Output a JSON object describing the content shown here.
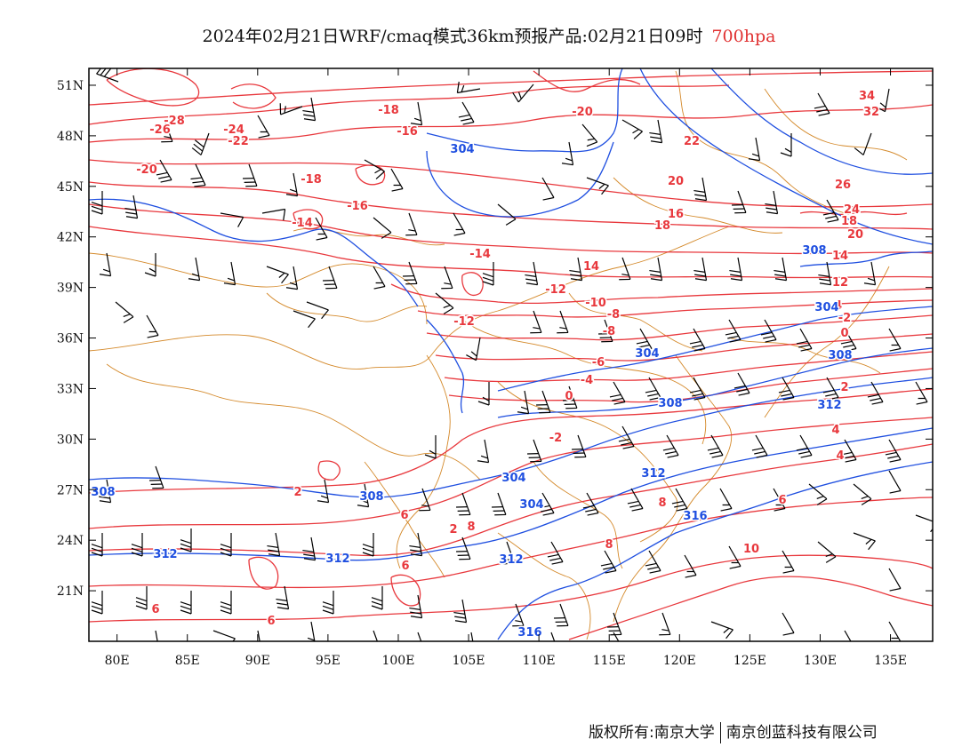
{
  "title": {
    "main": "2024年02月21日WRF/cmaq模式36km预报产品:02月21日09时",
    "level": "700hpa"
  },
  "map": {
    "lat_labels": [
      "51N",
      "48N",
      "45N",
      "42N",
      "39N",
      "36N",
      "33N",
      "30N",
      "27N",
      "24N",
      "21N"
    ],
    "lon_labels": [
      "80E",
      "85E",
      "90E",
      "95E",
      "100E",
      "105E",
      "110E",
      "115E",
      "120E",
      "125E",
      "130E",
      "135E"
    ],
    "lon_range": [
      78,
      138
    ],
    "lat_range": [
      18,
      52
    ],
    "colors": {
      "temperature": "#e8383d",
      "geopotential": "#1f4fe0",
      "boundary": "#d4892a",
      "wind": "#000000",
      "frame": "#000000"
    },
    "temperature_labels": [
      "-28",
      "-26",
      "-24",
      "-22",
      "-20",
      "-20",
      "-18",
      "-18",
      "-16",
      "-16",
      "-14",
      "-14",
      "-12",
      "-12",
      "-10",
      "-8",
      "-8",
      "-6",
      "-4",
      "-4",
      "-2",
      "-2",
      "0",
      "0",
      "2",
      "2",
      "2",
      "4",
      "4",
      "6",
      "6",
      "6",
      "6",
      "6",
      "8",
      "8",
      "8",
      "10",
      "12",
      "14",
      "14",
      "16",
      "18",
      "18",
      "20",
      "20",
      "22",
      "24",
      "26",
      "32",
      "34"
    ],
    "geopotential_labels": [
      "304",
      "304",
      "304",
      "304",
      "304",
      "308",
      "308",
      "308",
      "308",
      "308",
      "312",
      "312",
      "312",
      "312",
      "312",
      "316",
      "316"
    ]
  },
  "footer": {
    "left": "版权所有:南京大学",
    "right": "南京创蓝科技有限公司"
  }
}
